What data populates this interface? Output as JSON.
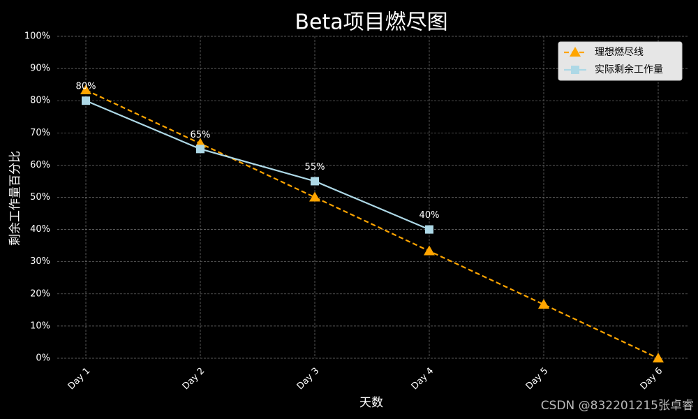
{
  "chart_data": {
    "type": "line",
    "title": "Beta项目燃尽图",
    "x_label": "天数",
    "y_label": "剩余工作量百分比",
    "categories": [
      "Day 1",
      "Day 2",
      "Day 3",
      "Day 4",
      "Day 5",
      "Day 6"
    ],
    "series": [
      {
        "name": "理想燃尽线",
        "color": "#ffa500",
        "linestyle": "dashed",
        "marker": "triangle",
        "values": [
          83.3,
          66.7,
          50,
          33.3,
          16.7,
          0
        ]
      },
      {
        "name": "实际剩余工作量",
        "color": "#add8e6",
        "linestyle": "solid",
        "marker": "square",
        "values": [
          80,
          65,
          55,
          40,
          null,
          null
        ],
        "value_labels": [
          "80%",
          "65%",
          "55%",
          "40%",
          null,
          null
        ]
      }
    ],
    "ylim": [
      0,
      100
    ],
    "yticks": [
      {
        "value": 0,
        "label": "0%"
      },
      {
        "value": 10,
        "label": "10%"
      },
      {
        "value": 20,
        "label": "20%"
      },
      {
        "value": 30,
        "label": "30%"
      },
      {
        "value": 40,
        "label": "40%"
      },
      {
        "value": 50,
        "label": "50%"
      },
      {
        "value": 60,
        "label": "60%"
      },
      {
        "value": 70,
        "label": "70%"
      },
      {
        "value": 80,
        "label": "80%"
      },
      {
        "value": 90,
        "label": "90%"
      },
      {
        "value": 100,
        "label": "100%"
      }
    ],
    "grid": true,
    "legend": "upper right",
    "watermark": "CSDN @832201215张卓睿"
  }
}
